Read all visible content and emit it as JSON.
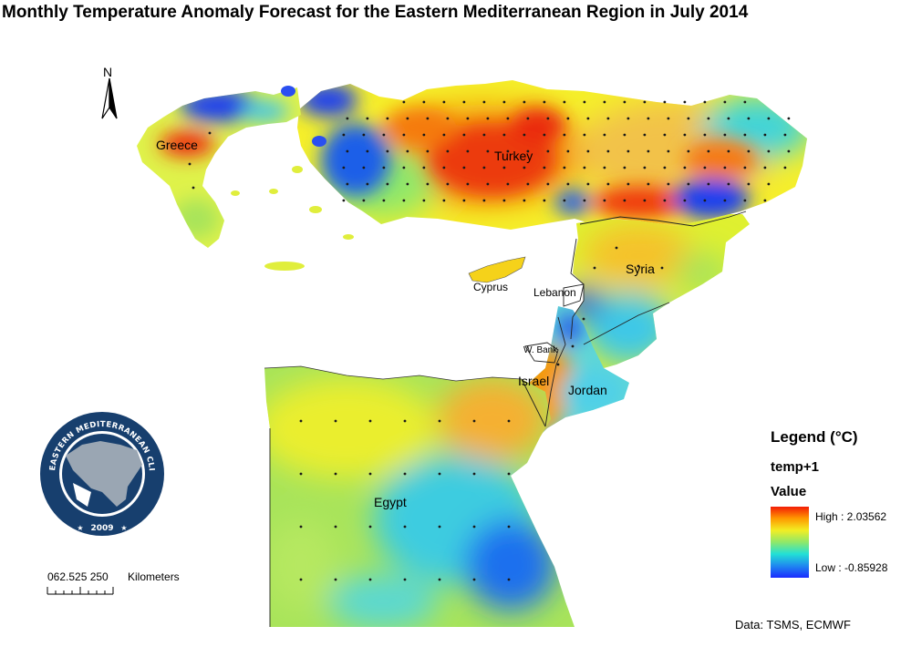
{
  "title": "Monthly  Temperature Anomaly Forecast for the Eastern Mediterranean Region in July 2014",
  "north_arrow": {
    "label": "N",
    "icon": "north-arrow-icon"
  },
  "countries": {
    "greece": "Greece",
    "turkey": "Turkey",
    "syria": "Syria",
    "cyprus": "Cyprus",
    "lebanon": "Lebanon",
    "westbank": "W. Bank",
    "israel": "Israel",
    "jordan": "Jordan",
    "egypt": "Egypt"
  },
  "legend": {
    "title": "Legend (°C)",
    "layer": "temp+1",
    "field": "Value",
    "high": "High : 2.03562",
    "low": "Low : -0.85928",
    "ramp_colors": [
      "#f21c06",
      "#ff9a00",
      "#f2ee24",
      "#8fe86a",
      "#22e0d6",
      "#1f88f0",
      "#1a2bff"
    ]
  },
  "scale_bar": {
    "ticks_text": "062.525  250",
    "unit": "Kilometers"
  },
  "logo": {
    "ring_text": "EASTERN MEDITERRANEAN  CLIMATE  CENTRE",
    "year": "2009",
    "colors": {
      "ring": "#173f6e",
      "land": "#9aa6b3"
    }
  },
  "source": "Data:  TSMS, ECMWF"
}
